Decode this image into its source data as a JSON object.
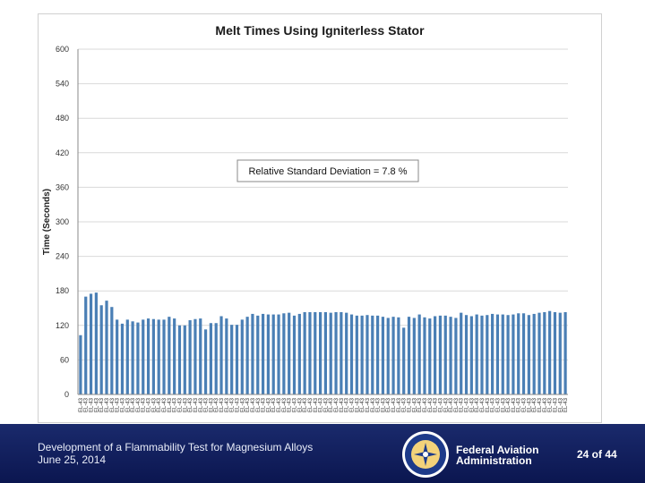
{
  "chart_data": {
    "type": "bar",
    "title": "Melt Times Using Igniterless Stator",
    "xlabel": "",
    "ylabel": "Time (Seconds)",
    "ylim": [
      0,
      600
    ],
    "yticks": [
      "0",
      "60",
      "120",
      "180",
      "240",
      "300",
      "360",
      "420",
      "480",
      "540",
      "600"
    ],
    "grid": true,
    "annotation": "Relative Standard Deviation = 7.8 %",
    "bar_color": "#4a7fb5",
    "category_label": "EL-43",
    "values": [
      103,
      170,
      175,
      177,
      155,
      163,
      152,
      130,
      123,
      130,
      127,
      125,
      130,
      132,
      131,
      130,
      130,
      135,
      132,
      120,
      120,
      129,
      131,
      132,
      113,
      124,
      124,
      136,
      132,
      121,
      121,
      130,
      135,
      140,
      137,
      140,
      139,
      139,
      139,
      141,
      142,
      137,
      140,
      143,
      143,
      143,
      143,
      143,
      142,
      143,
      143,
      142,
      139,
      137,
      137,
      138,
      137,
      137,
      135,
      133,
      135,
      134,
      116,
      135,
      133,
      139,
      134,
      132,
      136,
      137,
      137,
      135,
      133,
      142,
      138,
      136,
      139,
      137,
      138,
      140,
      139,
      139,
      138,
      139,
      141,
      141,
      138,
      140,
      142,
      143,
      145,
      143,
      142,
      143
    ]
  },
  "footer": {
    "line1": "Development of a Flammability Test for Magnesium Alloys",
    "line2": "June 25, 2014",
    "agency_line1": "Federal Aviation",
    "agency_line2": "Administration",
    "page": "24 of 44",
    "seal_text": "FEDERAL AVIATION ADMINISTRATION"
  }
}
